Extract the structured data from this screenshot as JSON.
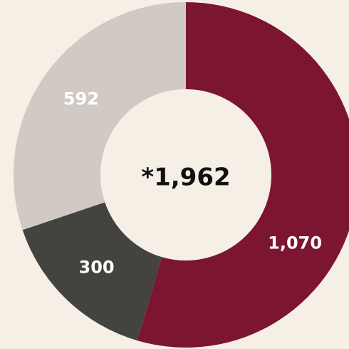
{
  "chart_data": {
    "type": "donut",
    "categories": [
      null,
      null,
      null
    ],
    "values": [
      1070,
      300,
      592
    ],
    "value_labels": [
      "1,070",
      "300",
      "592"
    ],
    "colors": [
      "#7b1530",
      "#434340",
      "#d0c9c4"
    ],
    "center_label": "*1,962"
  }
}
